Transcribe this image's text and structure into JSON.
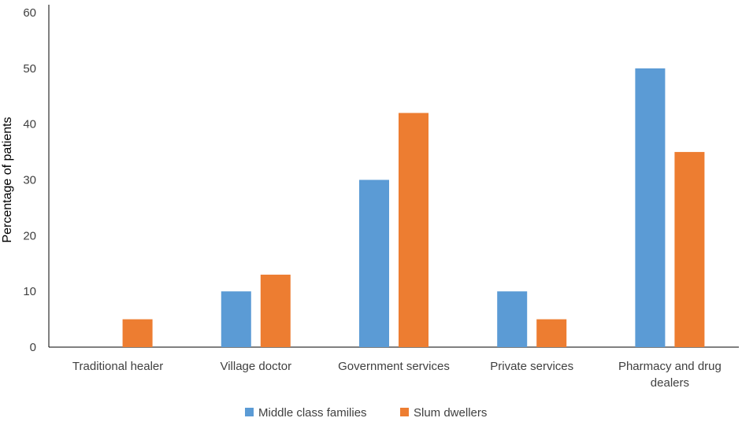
{
  "chart_data": {
    "type": "bar",
    "title": "",
    "xlabel": "",
    "ylabel": "Percentage of patients",
    "ylim": [
      0,
      60
    ],
    "yticks": [
      0,
      10,
      20,
      30,
      40,
      50,
      60
    ],
    "grid": false,
    "legend_position": "bottom",
    "categories": [
      [
        "Traditional healer"
      ],
      [
        "Village doctor"
      ],
      [
        "Government services"
      ],
      [
        "Private services"
      ],
      [
        "Pharmacy and drug",
        "dealers"
      ]
    ],
    "series": [
      {
        "name": "Middle class families",
        "color": "#5B9BD5",
        "values": [
          0,
          10,
          30,
          10,
          50
        ]
      },
      {
        "name": "Slum dwellers",
        "color": "#ED7D31",
        "values": [
          5,
          13,
          42,
          5,
          35
        ]
      }
    ]
  }
}
